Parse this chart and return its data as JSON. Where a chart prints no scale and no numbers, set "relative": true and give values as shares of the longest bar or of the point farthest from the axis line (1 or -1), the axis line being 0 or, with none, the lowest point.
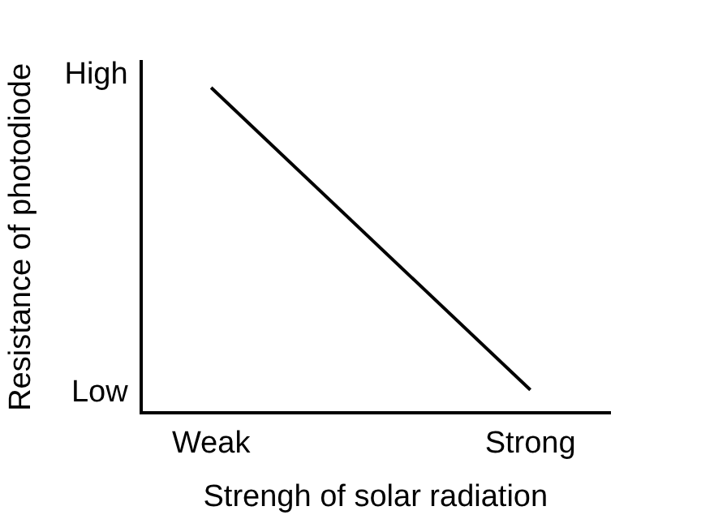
{
  "chart_data": {
    "type": "line",
    "xlabel": "Strengh of solar radiation",
    "ylabel": "Resistance of photodiode",
    "categories": [
      "Weak",
      "Strong"
    ],
    "series": [
      {
        "color": "#000000",
        "values": [
          1,
          0.07
        ]
      }
    ],
    "relative": true,
    "annotations": [
      "High",
      "Low"
    ],
    "grid": false
  }
}
